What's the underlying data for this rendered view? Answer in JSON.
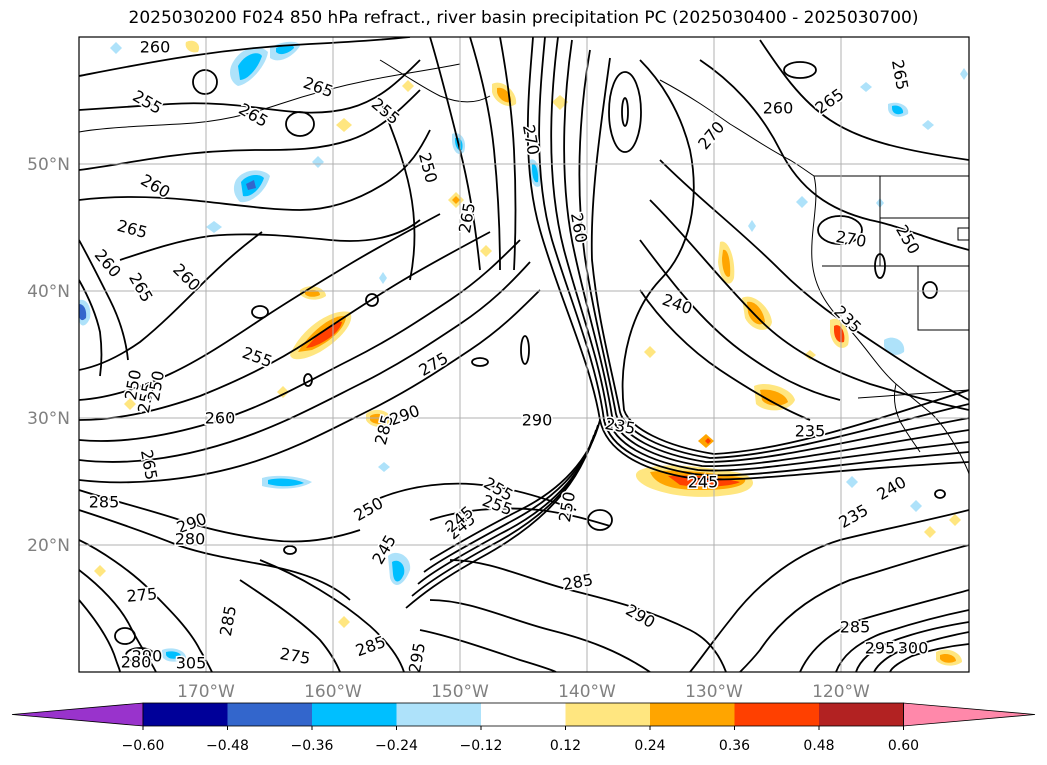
{
  "title": "2025030200 F024 850 hPa refract., river basin precipitation PC (2025030400 - 2025030700)",
  "lat_ticks": [
    "50°N",
    "40°N",
    "30°N",
    "20°N"
  ],
  "lon_ticks": [
    "170°W",
    "160°W",
    "150°W",
    "140°W",
    "130°W",
    "120°W"
  ],
  "contour_labels": [
    "260",
    "265",
    "255",
    "265",
    "255",
    "270",
    "260",
    "265",
    "260",
    "265",
    "260",
    "250",
    "265",
    "260",
    "270",
    "265",
    "260",
    "265",
    "270",
    "250",
    "240",
    "275",
    "255",
    "235",
    "250",
    "255",
    "250",
    "290",
    "260",
    "285",
    "290",
    "235",
    "245",
    "235",
    "265",
    "240",
    "285",
    "290",
    "280",
    "250",
    "255",
    "245",
    "285",
    "275",
    "285",
    "290",
    "285",
    "295",
    "290",
    "280",
    "275",
    "305",
    "300",
    "295",
    "285",
    "245",
    "235",
    "255",
    "250",
    "245"
  ],
  "colorbar": {
    "ticks": [
      "−0.60",
      "−0.48",
      "−0.36",
      "−0.24",
      "−0.12",
      "0.12",
      "0.24",
      "0.36",
      "0.48",
      "0.60"
    ],
    "colors": [
      "#9933cc",
      "#000099",
      "#3366cc",
      "#00bfff",
      "#aee2fa",
      "#ffffff",
      "#ffe680",
      "#ffa500",
      "#ff4000",
      "#b22222",
      "#ff88aa"
    ]
  },
  "colors": {
    "contour": "#000000",
    "grid": "#b0b0b0",
    "axis_label": "#808080"
  }
}
